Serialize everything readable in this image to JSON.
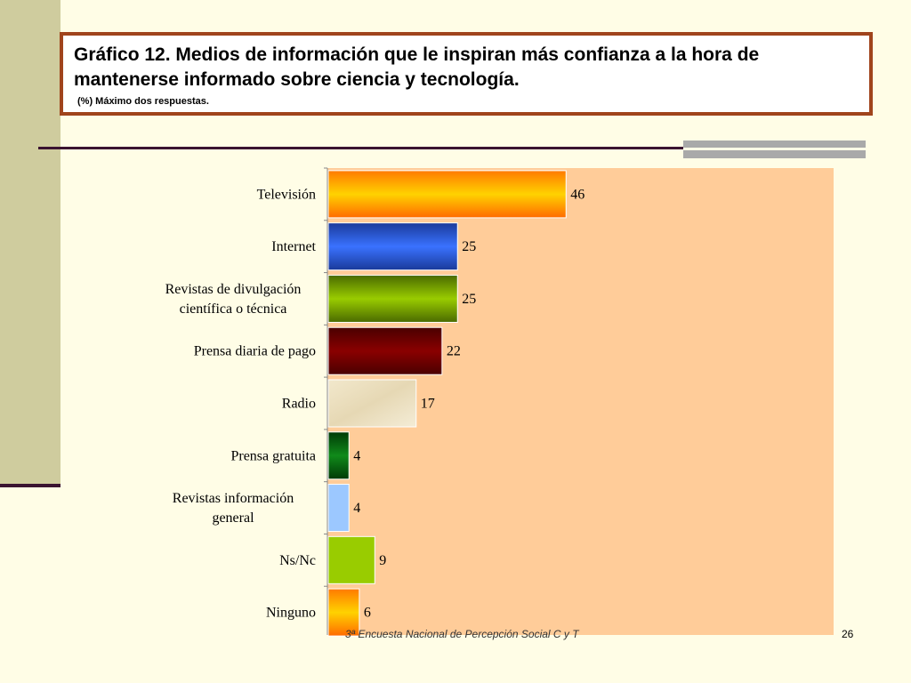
{
  "slide": {
    "title": "Gráfico 12. Medios de información que le inspiran más confianza a la hora de mantenerse informado sobre ciencia y tecnología.",
    "subtitle": "(%) Máximo dos respuestas.",
    "footer": "3ª Encuesta Nacional de Percepción Social C y T",
    "page_number": "26"
  },
  "colors": {
    "background": "#fffde6",
    "plot_area": "#ffcc99",
    "title_border": "#a0441c",
    "accent_line": "#3a1330"
  },
  "chart_data": {
    "type": "bar",
    "orientation": "horizontal",
    "categories": [
      [
        "Televisión"
      ],
      [
        "Internet"
      ],
      [
        "Revistas de divulgación",
        "científica o técnica"
      ],
      [
        "Prensa diaria de pago"
      ],
      [
        "Radio"
      ],
      [
        "Prensa gratuita"
      ],
      [
        "Revistas información",
        "general"
      ],
      [
        "Ns/Nc"
      ],
      [
        "Ninguno"
      ]
    ],
    "values": [
      46,
      25,
      25,
      22,
      17,
      4,
      4,
      9,
      6
    ],
    "bar_colors": [
      "#ff8c00",
      "#2f5fe0",
      "#6a9a00",
      "#7a0000",
      "#eee2c4",
      "#0a6a12",
      "#99c8ff",
      "#99cc00",
      "#ff8c00"
    ],
    "xlim": [
      0,
      100
    ],
    "grid": false,
    "legend": "none",
    "title": "",
    "xlabel": "",
    "ylabel": ""
  }
}
